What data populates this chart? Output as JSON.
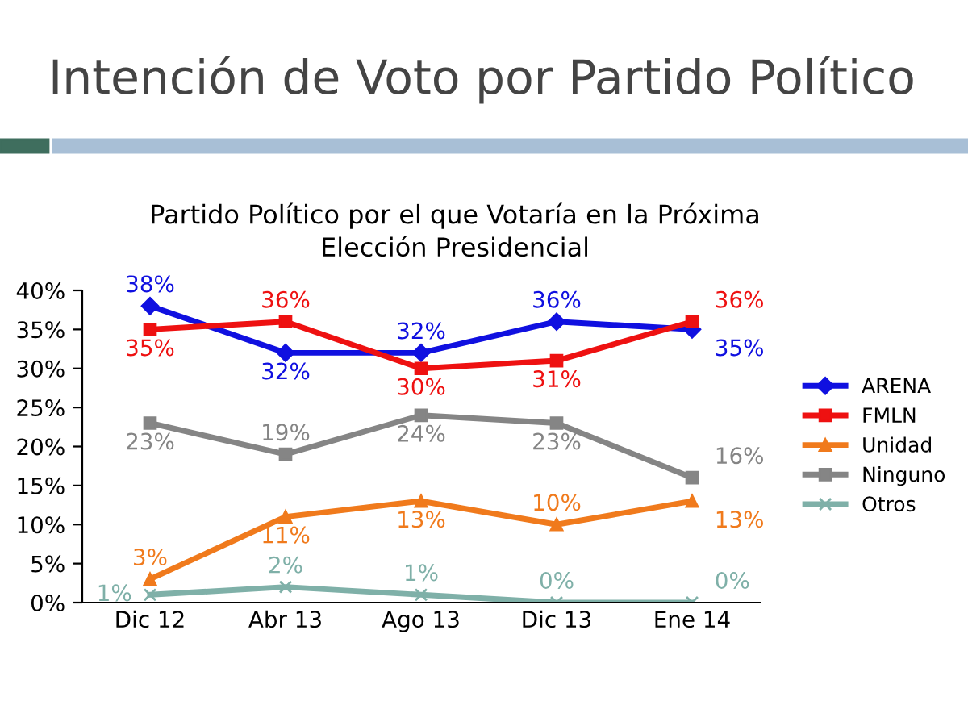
{
  "chart_data": {
    "type": "line",
    "title": "Intención de Voto por Partido Político",
    "subtitle": "Partido Político por el que Votaría en la Próxima\nElección Presidencial",
    "categories": [
      "Dic 12",
      "Abr 13",
      "Ago 13",
      "Dic 13",
      "Ene 14"
    ],
    "series": [
      {
        "name": "ARENA",
        "color": "#1010e0",
        "marker": "diamond",
        "values": [
          38,
          32,
          32,
          36,
          35
        ],
        "value_labels": [
          "38%",
          "32%",
          "32%",
          "36%",
          "35%"
        ]
      },
      {
        "name": "FMLN",
        "color": "#ee1111",
        "marker": "square",
        "values": [
          35,
          36,
          30,
          31,
          36
        ],
        "value_labels": [
          "35%",
          "36%",
          "30%",
          "31%",
          "36%"
        ]
      },
      {
        "name": "Unidad",
        "color": "#f07a1c",
        "marker": "triangle",
        "values": [
          3,
          11,
          13,
          10,
          13
        ],
        "value_labels": [
          "3%",
          "11%",
          "13%",
          "10%",
          "13%"
        ]
      },
      {
        "name": "Ninguno",
        "color": "#858585",
        "marker": "square",
        "values": [
          23,
          19,
          24,
          23,
          16
        ],
        "value_labels": [
          "23%",
          "19%",
          "24%",
          "23%",
          "16%"
        ]
      },
      {
        "name": "Otros",
        "color": "#7fb0a8",
        "marker": "cross",
        "values": [
          1,
          2,
          1,
          0,
          0
        ],
        "value_labels": [
          "1%",
          "2%",
          "1%",
          "0%",
          "0%"
        ]
      }
    ],
    "ylim": [
      0,
      40
    ],
    "yticks": [
      {
        "value": 0,
        "label": "0%"
      },
      {
        "value": 5,
        "label": "5%"
      },
      {
        "value": 10,
        "label": "10%"
      },
      {
        "value": 15,
        "label": "15%"
      },
      {
        "value": 20,
        "label": "20%"
      },
      {
        "value": 25,
        "label": "25%"
      },
      {
        "value": 30,
        "label": "30%"
      },
      {
        "value": 35,
        "label": "35%"
      },
      {
        "value": 40,
        "label": "40%"
      }
    ],
    "legend": "right",
    "grid": false
  }
}
